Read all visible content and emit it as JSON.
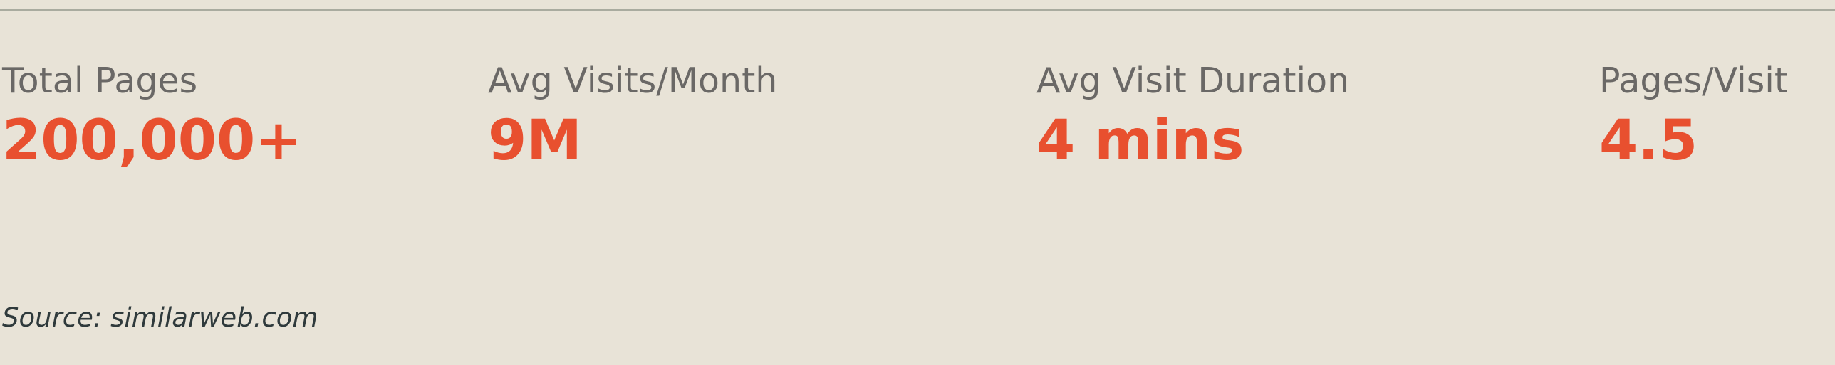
{
  "colors": {
    "background": "#e8e3d7",
    "divider": "#a9ab9f",
    "label": "#6a6866",
    "value_accent": "#e8502f",
    "source_text": "#2f3a3c"
  },
  "stats": [
    {
      "label": "Total Pages",
      "value": "200,000+"
    },
    {
      "label": "Avg Visits/Month",
      "value": "9M"
    },
    {
      "label": "Avg Visit Duration",
      "value": "4 mins"
    },
    {
      "label": "Pages/Visit",
      "value": "4.5"
    }
  ],
  "source": "Source: similarweb.com"
}
